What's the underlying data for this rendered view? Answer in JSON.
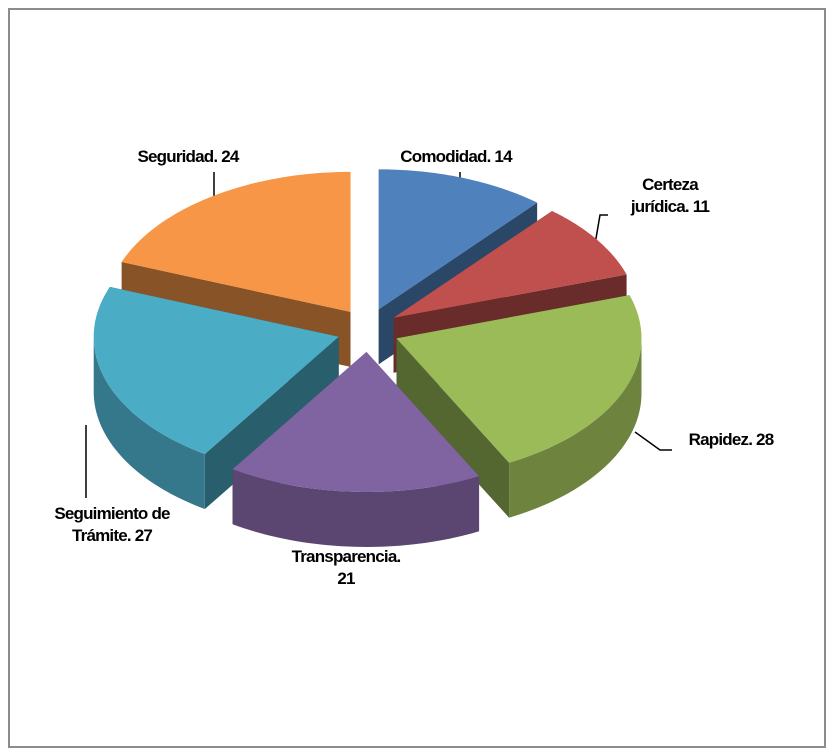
{
  "chart_data": {
    "type": "pie3d",
    "values": [
      14,
      11,
      28,
      21,
      27,
      24
    ],
    "value_labels": [
      "Comodidad. 14",
      "Certeza\njurídica. 11",
      "Rapidez. 28",
      "Transparencia.\n21",
      "Seguimiento de\nTrámite. 27",
      "Seguridad. 24"
    ],
    "colors": [
      "#4f81bd",
      "#c0504d",
      "#9bbb59",
      "#8064a2",
      "#4bacc6",
      "#f79646"
    ]
  }
}
